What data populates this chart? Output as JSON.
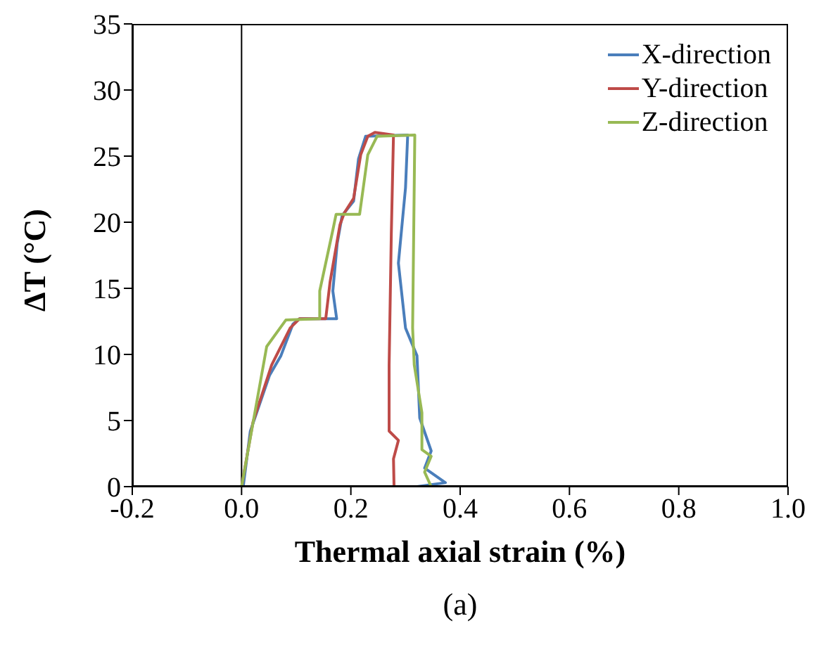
{
  "chart_data": {
    "type": "line",
    "xlabel": "Thermal axial strain (%)",
    "ylabel": "ΔT (°C)",
    "annotations": [
      "(a)"
    ],
    "xlim": [
      -0.2,
      1.0
    ],
    "xticks": [
      {
        "value": -0.2,
        "label": "-0.2"
      },
      {
        "value": 0,
        "label": "0.0"
      },
      {
        "value": 0.2,
        "label": "0.2"
      },
      {
        "value": 0.4,
        "label": "0.4"
      },
      {
        "value": 0.6,
        "label": "0.6"
      },
      {
        "value": 0.8,
        "label": "0.8"
      },
      {
        "value": 1.0,
        "label": "1.0"
      }
    ],
    "ylim": [
      0,
      35
    ],
    "yticks": [
      0,
      5,
      10,
      15,
      20,
      25,
      30,
      35
    ],
    "grid": false,
    "legend": "top right",
    "marker": "none",
    "line_style": "solid",
    "ref_lines": [
      {
        "axis": "x",
        "value": 0,
        "color": "#000000"
      }
    ],
    "series": [
      {
        "name": "X-direction",
        "color": "#4a7ebb",
        "x": [
          0.003,
          0.016,
          0.051,
          0.072,
          0.094,
          0.106,
          0.174,
          0.167,
          0.175,
          0.184,
          0.205,
          0.214,
          0.227,
          0.304,
          0.3,
          0.287,
          0.3,
          0.321,
          0.326,
          0.347,
          0.335,
          0.373,
          0.321
        ],
        "values": [
          0,
          4.2,
          8.4,
          9.9,
          12.3,
          12.7,
          12.7,
          14.8,
          18.4,
          20.5,
          21.6,
          24.8,
          26.5,
          26.6,
          22.6,
          16.9,
          12.0,
          9.9,
          5.2,
          2.7,
          1.4,
          0.3,
          0
        ]
      },
      {
        "name": "Y-direction",
        "color": "#be4b48",
        "x": [
          0,
          0.021,
          0.055,
          0.089,
          0.106,
          0.154,
          0.162,
          0.18,
          0.188,
          0.205,
          0.218,
          0.231,
          0.244,
          0.278,
          0.274,
          0.27,
          0.27,
          0.287,
          0.278,
          0.279
        ],
        "values": [
          0,
          4.9,
          9.2,
          12.0,
          12.7,
          12.7,
          15.5,
          19.8,
          20.7,
          21.8,
          25.1,
          26.5,
          26.8,
          26.6,
          19.1,
          9.2,
          4.2,
          3.5,
          2.1,
          0
        ]
      },
      {
        "name": "Z-direction",
        "color": "#98b954",
        "x": [
          0,
          0.046,
          0.081,
          0.143,
          0.143,
          0.167,
          0.173,
          0.216,
          0.231,
          0.248,
          0.317,
          0.313,
          0.316,
          0.33,
          0.33,
          0.347,
          0.335,
          0.347
        ],
        "values": [
          0,
          10.6,
          12.6,
          12.7,
          14.8,
          19.4,
          20.6,
          20.6,
          25.1,
          26.5,
          26.6,
          12.0,
          9.2,
          5.6,
          2.8,
          2.3,
          1.1,
          0
        ]
      }
    ]
  }
}
